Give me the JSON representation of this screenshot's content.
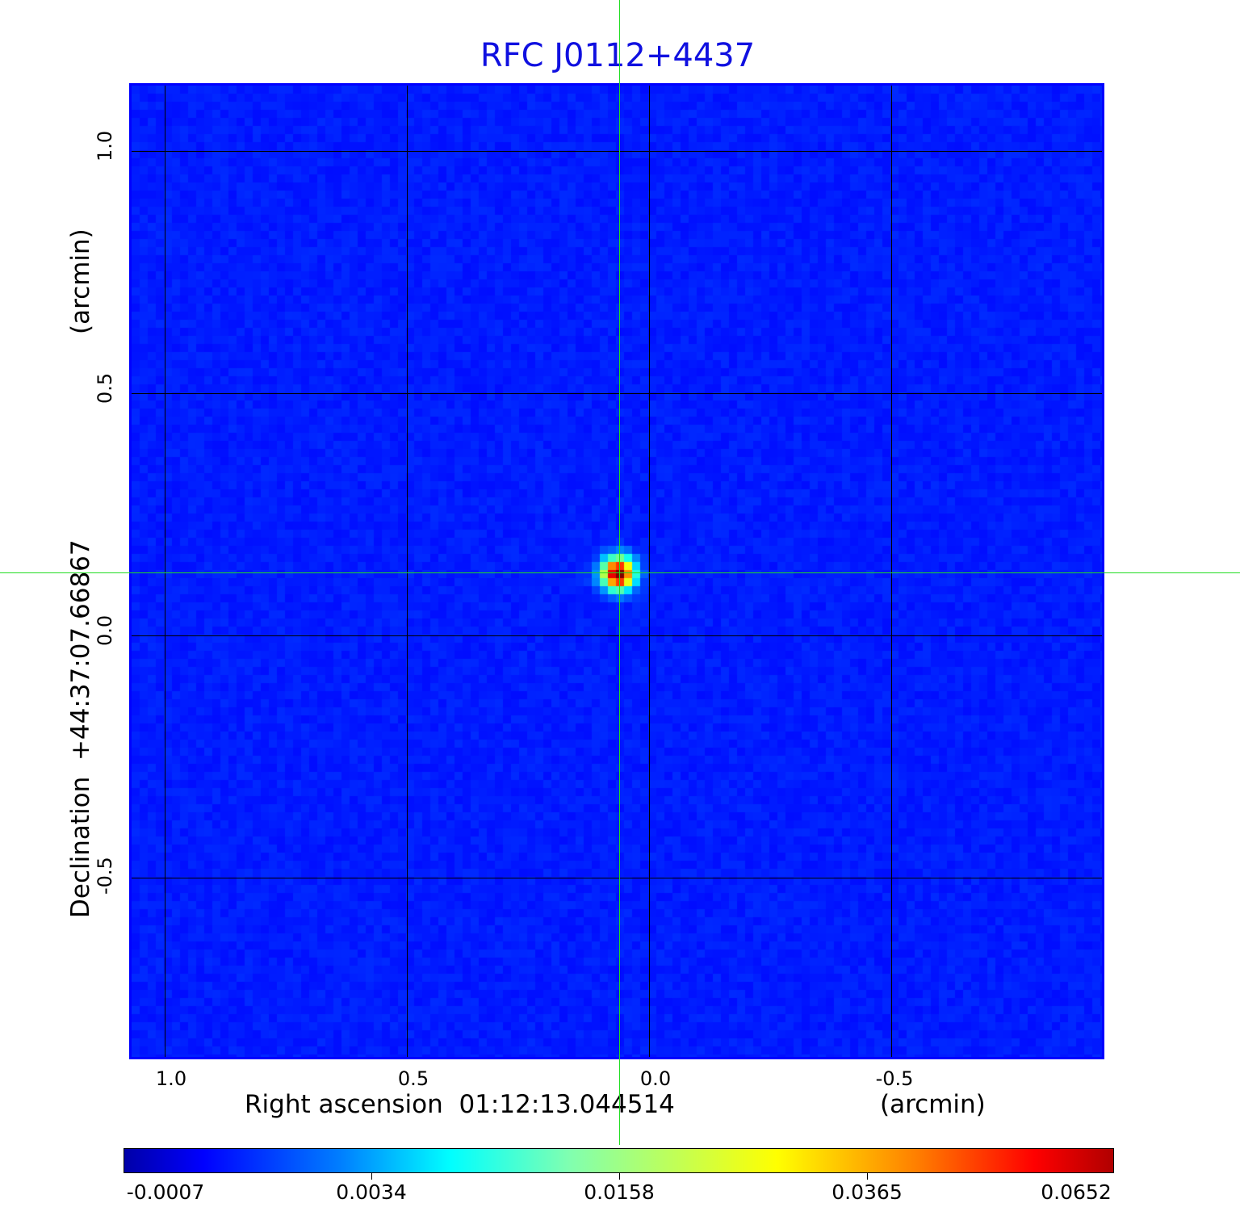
{
  "chart_data": {
    "type": "heatmap",
    "title": "RFC J0112+4437",
    "xlabel": "Right ascension  01:12:13.044514",
    "xunit": "(arcmin)",
    "ylabel": "Declination  +44:37:07.66867",
    "yunit": "(arcmin)",
    "x_ticks": [
      "1.0",
      "0.5",
      "0.0",
      "-0.5"
    ],
    "y_ticks": [
      "1.0",
      "0.5",
      "0.0",
      "-0.5"
    ],
    "x_tick_values": [
      1.0,
      0.5,
      0.0,
      -0.5
    ],
    "y_tick_values": [
      1.0,
      0.5,
      0.0,
      -0.5
    ],
    "xlim": [
      1.07,
      -0.94
    ],
    "ylim": [
      -0.87,
      1.14
    ],
    "grid": true,
    "crosshair": {
      "x": 0.062,
      "y": 0.13
    },
    "source_peak": {
      "x": 0.062,
      "y": 0.13,
      "value": 0.0652
    },
    "colormap": "jet",
    "colorbar": {
      "tick_labels": [
        "-0.0007",
        "0.0034",
        "0.0158",
        "0.0365",
        "0.0652"
      ],
      "range": [
        -0.0007,
        0.0652
      ],
      "placement": "bottom"
    },
    "colors": {
      "title": "#1010e0",
      "frame": "#0000ff",
      "crosshair": "#22dd22",
      "background": "#1a4af0"
    }
  }
}
